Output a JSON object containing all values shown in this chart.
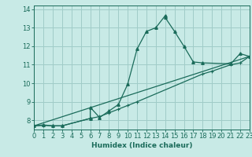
{
  "title": "",
  "xlabel": "Humidex (Indice chaleur)",
  "bg_color": "#c8eae6",
  "line_color": "#1a6b5a",
  "grid_color": "#a0ccc8",
  "xlim": [
    0,
    23
  ],
  "ylim": [
    7.5,
    14.2
  ],
  "yticks": [
    8,
    9,
    10,
    11,
    12,
    13,
    14
  ],
  "xticks": [
    0,
    1,
    2,
    3,
    4,
    5,
    6,
    7,
    8,
    9,
    10,
    11,
    12,
    13,
    14,
    15,
    16,
    17,
    18,
    19,
    20,
    21,
    22,
    23
  ],
  "series1_x": [
    0,
    1,
    2,
    3,
    6,
    6,
    7,
    8,
    9,
    10,
    11,
    12,
    13,
    14,
    14,
    15,
    16,
    17,
    18,
    21,
    22,
    23
  ],
  "series1_y": [
    7.7,
    7.75,
    7.7,
    7.7,
    8.1,
    8.7,
    8.15,
    8.5,
    8.85,
    9.95,
    11.85,
    12.8,
    13.0,
    13.65,
    13.55,
    12.8,
    12.0,
    11.15,
    11.1,
    11.05,
    11.6,
    11.45
  ],
  "series2_x": [
    0,
    1,
    2,
    3,
    6,
    7,
    8,
    9,
    10,
    11,
    18,
    19,
    21,
    22,
    23
  ],
  "series2_y": [
    7.7,
    7.72,
    7.7,
    7.7,
    8.1,
    8.2,
    8.4,
    8.6,
    8.8,
    9.0,
    10.5,
    10.65,
    11.0,
    11.1,
    11.45
  ],
  "series3_x": [
    0,
    23
  ],
  "series3_y": [
    7.7,
    11.45
  ]
}
